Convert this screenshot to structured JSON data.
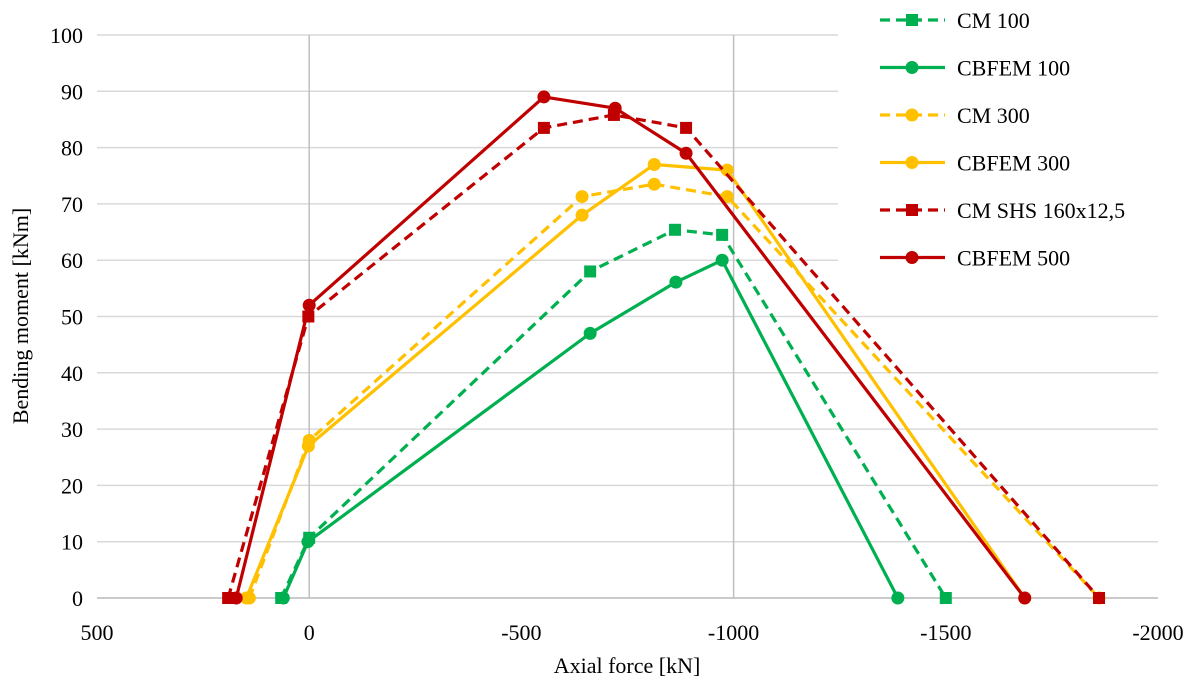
{
  "chart_data": {
    "type": "line",
    "title": "",
    "xlabel": "Axial force [kN]",
    "ylabel": "Bending moment [kNm]",
    "xlim": [
      500,
      -2000
    ],
    "ylim": [
      0,
      100
    ],
    "x_reversed": true,
    "xticks": [
      500,
      0,
      -500,
      -1000,
      -1500,
      -2000
    ],
    "yticks": [
      0,
      10,
      20,
      30,
      40,
      50,
      60,
      70,
      80,
      90,
      100
    ],
    "grid": "horizontal",
    "legend_position": "top-right",
    "series": [
      {
        "name": "CM 100",
        "color": "#00B050",
        "dashed": true,
        "marker": "square",
        "x": [
          66,
          0,
          -662,
          -862,
          -973,
          -1500
        ],
        "y": [
          0,
          10.7,
          58,
          65.4,
          64.5,
          0
        ]
      },
      {
        "name": "CBFEM 100",
        "color": "#00B050",
        "dashed": false,
        "marker": "circle",
        "x": [
          61,
          3,
          -662,
          -864,
          -973,
          -1387
        ],
        "y": [
          0,
          10,
          47,
          56.1,
          60,
          0
        ]
      },
      {
        "name": "CM 300",
        "color": "#FFC000",
        "dashed": true,
        "marker": "circle",
        "x": [
          141,
          0,
          -643,
          -813,
          -985,
          -1861
        ],
        "y": [
          0,
          28,
          71.3,
          73.5,
          71.3,
          0
        ]
      },
      {
        "name": "CBFEM 300",
        "color": "#FFC000",
        "dashed": false,
        "marker": "circle",
        "x": [
          148,
          2,
          -643,
          -813,
          -985,
          -1686
        ],
        "y": [
          0,
          27,
          68,
          77,
          76,
          0
        ]
      },
      {
        "name": "CM SHS 160x12,5",
        "color": "#C00000",
        "dashed": true,
        "marker": "square",
        "x": [
          191,
          2,
          -553,
          -718,
          -888,
          -1861
        ],
        "y": [
          0,
          50,
          83.5,
          85.8,
          83.5,
          0
        ]
      },
      {
        "name": "CBFEM 500",
        "color": "#C00000",
        "dashed": false,
        "marker": "circle",
        "x": [
          172,
          0,
          -553,
          -721,
          -888,
          -1686
        ],
        "y": [
          0,
          52,
          89,
          87,
          79,
          0
        ]
      }
    ]
  }
}
